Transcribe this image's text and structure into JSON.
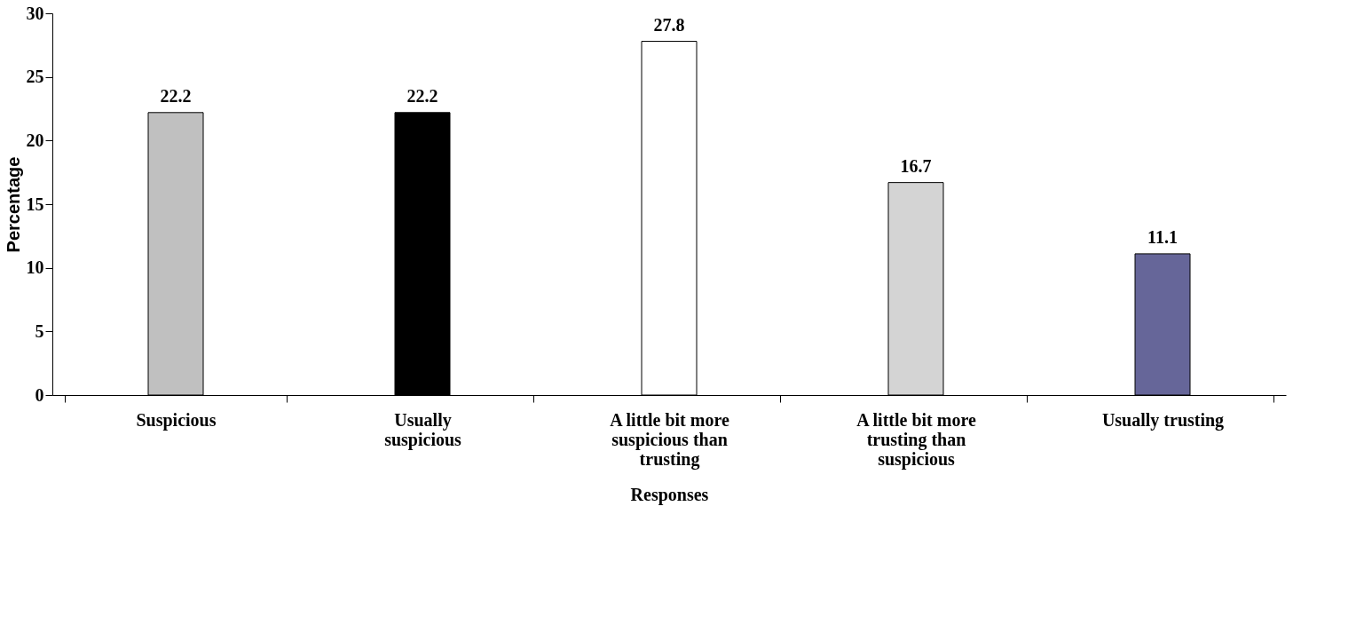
{
  "chart_data": {
    "type": "bar",
    "xlabel": "Responses",
    "ylabel": "Percentage",
    "categories": [
      "Suspicious",
      "Usually suspicious",
      "A little bit more suspicious than trusting",
      "A little bit more trusting than suspicious",
      "Usually trusting"
    ],
    "values": [
      22.2,
      22.2,
      27.8,
      16.7,
      11.1
    ],
    "colors": [
      "#c0c0c0",
      "#000000",
      "#ffffff",
      "#d4d4d4",
      "#666699"
    ],
    "ylim": [
      0,
      30
    ],
    "yticks": [
      0,
      5,
      10,
      15,
      20,
      25,
      30
    ],
    "grid": false,
    "data_labels": true
  }
}
